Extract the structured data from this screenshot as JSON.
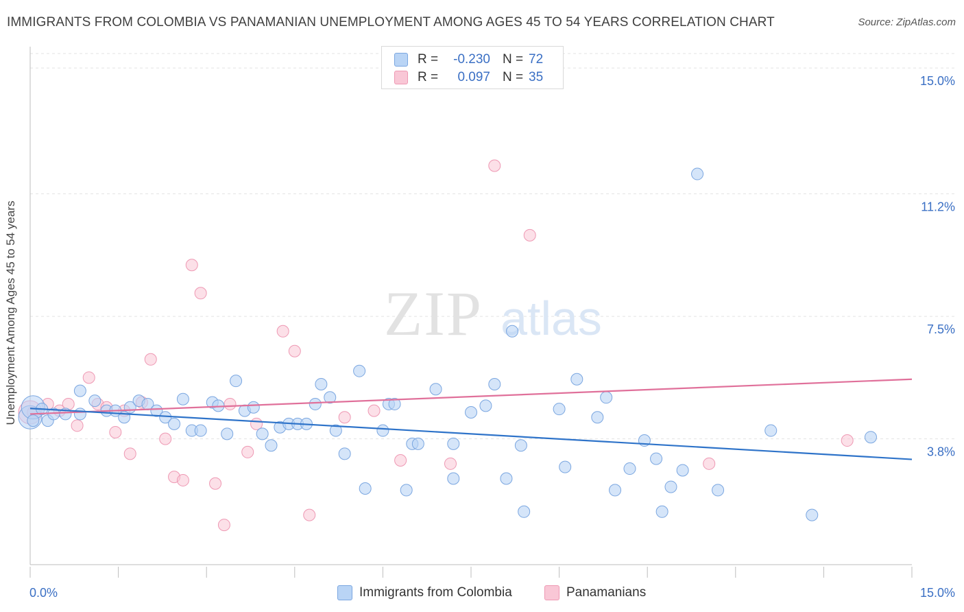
{
  "title": "IMMIGRANTS FROM COLOMBIA VS PANAMANIAN UNEMPLOYMENT AMONG AGES 45 TO 54 YEARS CORRELATION CHART",
  "source": "Source: ZipAtlas.com",
  "watermark": {
    "zip": "ZIP",
    "atlas": "atlas"
  },
  "legend": {
    "rows": [
      {
        "r_label": "R =",
        "r_value": "-0.230",
        "n_label": "N =",
        "n_value": "72",
        "fill": "#b9d4f5",
        "stroke": "#7aa6e0"
      },
      {
        "r_label": "R =",
        "r_value": "0.097",
        "n_label": "N =",
        "n_value": "35",
        "fill": "#f9c7d6",
        "stroke": "#ee98b3"
      }
    ]
  },
  "bottom_legend": [
    {
      "label": "Immigrants from Colombia",
      "fill": "#b9d4f5",
      "stroke": "#7aa6e0"
    },
    {
      "label": "Panamanians",
      "fill": "#f9c7d6",
      "stroke": "#ee98b3"
    }
  ],
  "colors": {
    "blue_fill": "#b9d4f5",
    "blue_stroke": "#7aa6e0",
    "blue_line": "#2e73c9",
    "pink_fill": "#f9c7d6",
    "pink_stroke": "#ee98b3",
    "pink_line": "#e0709a",
    "tick_label": "#3a6fc4",
    "grid": "#e3e3e3"
  },
  "chart_data": {
    "type": "scatter",
    "title": "IMMIGRANTS FROM COLOMBIA VS PANAMANIAN UNEMPLOYMENT AMONG AGES 45 TO 54 YEARS CORRELATION CHART",
    "xlabel": "",
    "ylabel": "Unemployment Among Ages 45 to 54 years",
    "xlim": [
      0,
      15
    ],
    "ylim": [
      0,
      15.5
    ],
    "x_tick_labels": [
      "0.0%",
      "15.0%"
    ],
    "y_ticks": [
      3.8,
      7.5,
      11.2,
      15.0
    ],
    "y_tick_labels": [
      "3.8%",
      "7.5%",
      "11.2%",
      "15.0%"
    ],
    "grid": "horizontal dashed",
    "series": [
      {
        "name": "Immigrants from Colombia",
        "trend": [
          [
            0.0,
            4.72
          ],
          [
            15.0,
            3.18
          ]
        ],
        "points": [
          [
            0.05,
            4.35
          ],
          [
            0.2,
            4.7
          ],
          [
            0.3,
            4.35
          ],
          [
            0.4,
            4.55
          ],
          [
            0.6,
            4.55
          ],
          [
            0.85,
            4.55
          ],
          [
            0.85,
            5.25
          ],
          [
            1.1,
            4.95
          ],
          [
            1.3,
            4.65
          ],
          [
            1.45,
            4.65
          ],
          [
            1.6,
            4.45
          ],
          [
            1.7,
            4.75
          ],
          [
            1.85,
            4.95
          ],
          [
            2.0,
            4.85
          ],
          [
            2.15,
            4.65
          ],
          [
            2.3,
            4.45
          ],
          [
            2.45,
            4.25
          ],
          [
            2.6,
            5.0
          ],
          [
            2.75,
            4.05
          ],
          [
            2.9,
            4.05
          ],
          [
            3.1,
            4.9
          ],
          [
            3.2,
            4.8
          ],
          [
            3.35,
            3.95
          ],
          [
            3.5,
            5.55
          ],
          [
            3.65,
            4.65
          ],
          [
            3.8,
            4.75
          ],
          [
            3.95,
            3.95
          ],
          [
            4.1,
            3.6
          ],
          [
            4.25,
            4.15
          ],
          [
            4.4,
            4.25
          ],
          [
            4.55,
            4.25
          ],
          [
            4.7,
            4.25
          ],
          [
            4.85,
            4.85
          ],
          [
            4.95,
            5.45
          ],
          [
            5.1,
            5.05
          ],
          [
            5.2,
            4.05
          ],
          [
            5.35,
            3.35
          ],
          [
            5.6,
            5.85
          ],
          [
            5.7,
            2.3
          ],
          [
            6.0,
            4.05
          ],
          [
            6.1,
            4.85
          ],
          [
            6.2,
            4.85
          ],
          [
            6.4,
            2.25
          ],
          [
            6.5,
            3.65
          ],
          [
            6.6,
            3.65
          ],
          [
            6.9,
            5.3
          ],
          [
            7.2,
            3.65
          ],
          [
            7.2,
            2.6
          ],
          [
            7.5,
            4.6
          ],
          [
            7.75,
            4.8
          ],
          [
            7.9,
            5.45
          ],
          [
            8.1,
            2.6
          ],
          [
            8.2,
            7.05
          ],
          [
            8.35,
            3.6
          ],
          [
            8.4,
            1.6
          ],
          [
            9.0,
            4.7
          ],
          [
            9.1,
            2.95
          ],
          [
            9.3,
            5.6
          ],
          [
            9.65,
            4.45
          ],
          [
            9.8,
            5.05
          ],
          [
            9.95,
            2.25
          ],
          [
            10.2,
            2.9
          ],
          [
            10.45,
            3.75
          ],
          [
            10.65,
            3.2
          ],
          [
            10.75,
            1.6
          ],
          [
            10.9,
            2.35
          ],
          [
            11.1,
            2.85
          ],
          [
            11.35,
            11.8
          ],
          [
            11.7,
            2.25
          ],
          [
            12.6,
            4.05
          ],
          [
            13.3,
            1.5
          ],
          [
            14.3,
            3.85
          ]
        ],
        "big_points": [
          [
            0.0,
            4.45
          ],
          [
            0.05,
            4.75
          ]
        ]
      },
      {
        "name": "Panamanians",
        "trend": [
          [
            0.0,
            4.55
          ],
          [
            15.0,
            5.6
          ]
        ],
        "points": [
          [
            0.05,
            4.6
          ],
          [
            0.3,
            4.85
          ],
          [
            0.5,
            4.65
          ],
          [
            0.65,
            4.85
          ],
          [
            0.8,
            4.2
          ],
          [
            1.0,
            5.65
          ],
          [
            1.15,
            4.85
          ],
          [
            1.3,
            4.75
          ],
          [
            1.45,
            4.0
          ],
          [
            1.6,
            4.65
          ],
          [
            1.7,
            3.35
          ],
          [
            1.9,
            4.9
          ],
          [
            2.05,
            6.2
          ],
          [
            2.3,
            3.8
          ],
          [
            2.45,
            2.65
          ],
          [
            2.6,
            2.55
          ],
          [
            2.75,
            9.05
          ],
          [
            2.9,
            8.2
          ],
          [
            3.15,
            2.45
          ],
          [
            3.3,
            1.2
          ],
          [
            3.4,
            4.85
          ],
          [
            3.7,
            3.4
          ],
          [
            3.85,
            4.25
          ],
          [
            4.3,
            7.05
          ],
          [
            4.5,
            6.45
          ],
          [
            4.75,
            1.5
          ],
          [
            5.35,
            4.45
          ],
          [
            5.85,
            4.65
          ],
          [
            6.3,
            3.15
          ],
          [
            7.15,
            3.05
          ],
          [
            7.9,
            12.05
          ],
          [
            8.5,
            9.95
          ],
          [
            11.55,
            3.05
          ],
          [
            13.9,
            3.75
          ]
        ],
        "big_points": [
          [
            0.0,
            4.6
          ]
        ]
      }
    ]
  }
}
